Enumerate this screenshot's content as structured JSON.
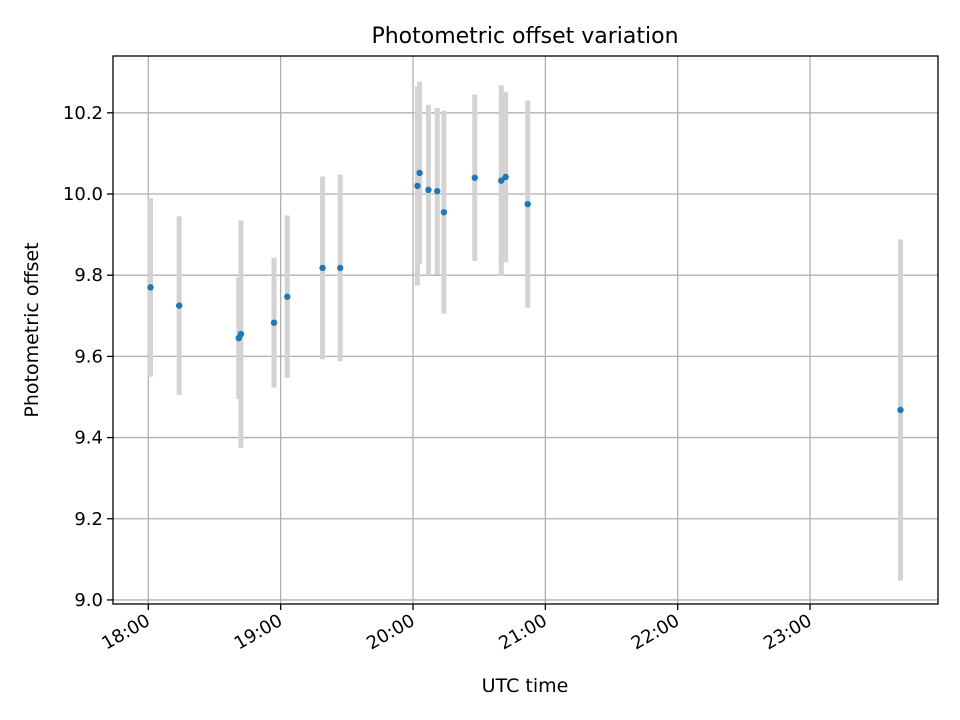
{
  "chart_data": {
    "type": "scatter",
    "title": "Photometric offset variation",
    "xlabel": "UTC time",
    "ylabel": "Photometric offset",
    "x_ticks": [
      "18:00",
      "19:00",
      "20:00",
      "21:00",
      "22:00",
      "23:00"
    ],
    "y_ticks": [
      "9.0",
      "9.2",
      "9.4",
      "9.6",
      "9.8",
      "10.0",
      "10.2"
    ],
    "xlim": [
      "17:44",
      "23:58"
    ],
    "ylim": [
      8.99,
      10.34
    ],
    "grid": true,
    "colors": {
      "point": "#1f77b4",
      "error_bar": "#d3d3d3",
      "grid": "#b0b0b0"
    },
    "points": [
      {
        "x": "18:01",
        "y": 9.77,
        "err": 0.22
      },
      {
        "x": "18:14",
        "y": 9.725,
        "err": 0.22
      },
      {
        "x": "18:41",
        "y": 9.645,
        "err": 0.15
      },
      {
        "x": "18:42",
        "y": 9.655,
        "err": 0.28
      },
      {
        "x": "18:57",
        "y": 9.683,
        "err": 0.16
      },
      {
        "x": "19:03",
        "y": 9.747,
        "err": 0.2
      },
      {
        "x": "19:19",
        "y": 9.818,
        "err": 0.225
      },
      {
        "x": "19:27",
        "y": 9.818,
        "err": 0.23
      },
      {
        "x": "20:02",
        "y": 10.02,
        "err": 0.245
      },
      {
        "x": "20:03",
        "y": 10.052,
        "err": 0.225
      },
      {
        "x": "20:07",
        "y": 10.01,
        "err": 0.21
      },
      {
        "x": "20:11",
        "y": 10.007,
        "err": 0.205
      },
      {
        "x": "20:14",
        "y": 9.955,
        "err": 0.25
      },
      {
        "x": "20:28",
        "y": 10.04,
        "err": 0.205
      },
      {
        "x": "20:40",
        "y": 10.033,
        "err": 0.235
      },
      {
        "x": "20:42",
        "y": 10.042,
        "err": 0.21
      },
      {
        "x": "20:52",
        "y": 9.975,
        "err": 0.255
      },
      {
        "x": "23:41",
        "y": 9.468,
        "err": 0.42
      }
    ]
  }
}
